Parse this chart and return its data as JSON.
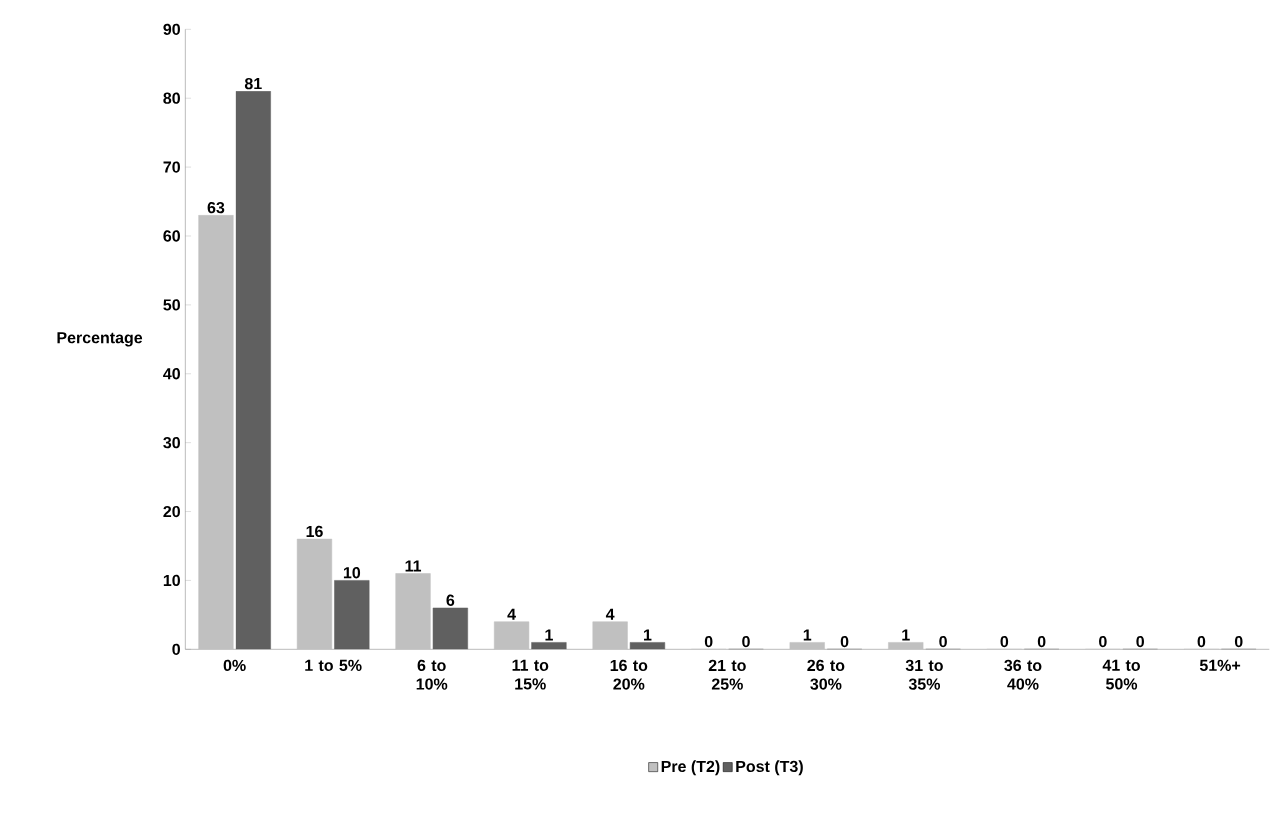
{
  "chart_data": {
    "type": "bar",
    "ylabel": "Percentage",
    "categories": [
      "0%",
      "1 to 5%",
      "6 to 10%",
      "11 to 15%",
      "16 to 20%",
      "21 to 25%",
      "26 to 30%",
      "31 to 35%",
      "36 to 40%",
      "41 to 50%",
      "51%+"
    ],
    "series": [
      {
        "name": "Pre (T2)",
        "color": "#c0c0c0",
        "values": [
          63,
          16,
          11,
          4,
          4,
          0,
          1,
          1,
          0,
          0,
          0
        ]
      },
      {
        "name": "Post (T3)",
        "color": "#606060",
        "values": [
          81,
          10,
          6,
          1,
          1,
          0,
          0,
          0,
          0,
          0,
          0
        ]
      }
    ],
    "ylim": [
      0,
      90
    ],
    "yticks": [
      0,
      10,
      20,
      30,
      40,
      50,
      60,
      70,
      80,
      90
    ],
    "data_labels": true,
    "legend": "bottom",
    "grid": false
  }
}
